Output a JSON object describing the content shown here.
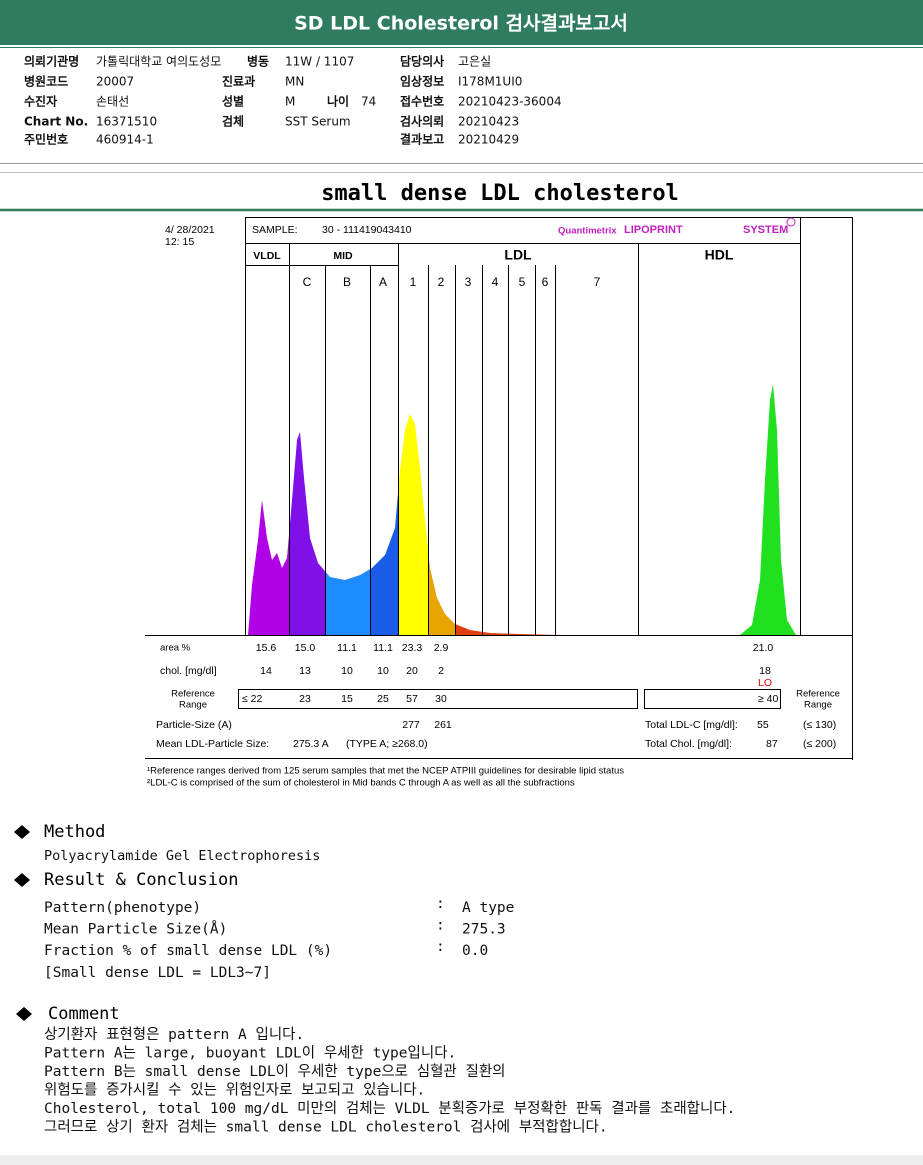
{
  "header": {
    "title": "SD LDL Cholesterol 검사결과보고서"
  },
  "info": [
    {
      "label": "의뢰기관명",
      "value": "가톨릭대학교 여의도성모"
    },
    {
      "label": "병동",
      "value": "11W / 1107"
    },
    {
      "label": "담당의사",
      "value": "고은실"
    },
    {
      "label": "병원코드",
      "value": "20007"
    },
    {
      "label": "진료과",
      "value": "MN"
    },
    {
      "label": "임상정보",
      "value": "I178M1UI0"
    },
    {
      "label": "수진자",
      "value": "손태선"
    },
    {
      "label": "성별",
      "value": "M"
    },
    {
      "label": "나이",
      "value": "74"
    },
    {
      "label": "접수번호",
      "value": "20210423-36004"
    },
    {
      "label": "Chart No.",
      "value": "16371510"
    },
    {
      "label": "검체",
      "value": "SST Serum"
    },
    {
      "label": "검사의뢰",
      "value": "20210423"
    },
    {
      "label": "주민번호",
      "value": "460914-1"
    },
    {
      "label": "결과보고",
      "value": "20210429"
    }
  ],
  "report_title": "small dense LDL cholesterol",
  "chart": {
    "date": "4/ 28/2021",
    "time": "12: 15",
    "sample_label": "SAMPLE:",
    "sample": "30 - 111419043410",
    "brand": "Quantimetrix",
    "product": "LIPOPRINT",
    "system": "SYSTEM",
    "groups": [
      "VLDL",
      "MID",
      "LDL",
      "HDL"
    ],
    "bands": [
      "C",
      "B",
      "A",
      "1",
      "2",
      "3",
      "4",
      "5",
      "6",
      "7"
    ],
    "area": {
      "label": "area %",
      "values": [
        "15.6",
        "15.0",
        "11.1",
        "11.1",
        "23.3",
        "2.9"
      ],
      "hdl": "21.0"
    },
    "chol": {
      "label": "chol. [mg/dl]",
      "values": [
        "14",
        "13",
        "10",
        "10",
        "20",
        "2"
      ],
      "hdl": "18",
      "hdl_flag": "LO"
    },
    "reference": {
      "label": [
        "Reference",
        "Range"
      ],
      "values": [
        "≤ 22",
        "23",
        "15",
        "25",
        "57",
        "30"
      ],
      "hdl": "≥ 40",
      "right_label": [
        "Reference",
        "Range"
      ]
    },
    "particle": {
      "label": "Particle-Size (A)",
      "values": [
        "277",
        "261"
      ]
    },
    "mean": {
      "label": "Mean LDL-Particle Size:",
      "value": "275.3 A",
      "type": "(TYPE A; ≥268.0)"
    },
    "total_ldl": {
      "label": "Total LDL-C [mg/dl]:",
      "value": "55",
      "range": "(≤ 130)"
    },
    "total_chol": {
      "label": "Total Chol. [mg/dl]:",
      "value": "87",
      "range": "(≤ 200)"
    },
    "footnotes": [
      "¹Reference ranges derived from 125 serum samples that met the NCEP ATPIII guidelines for desirable lipid status",
      "²LDL-C is comprised of the sum of cholesterol in Mid bands C through A as well as all the subfractions"
    ]
  },
  "method": {
    "heading": "Method",
    "text": "Polyacrylamide Gel Electrophoresis"
  },
  "result": {
    "heading": "Result & Conclusion",
    "separator": ":",
    "items": [
      {
        "label": "Pattern(phenotype)",
        "value": "A type"
      },
      {
        "label": "Mean Particle Size(Å)",
        "value": "275.3"
      },
      {
        "label": "Fraction % of small dense LDL (%)",
        "value": "0.0"
      }
    ],
    "note": "[Small dense LDL = LDL3~7]"
  },
  "comment": {
    "heading": "Comment",
    "lines": [
      "상기환자 표현형은 pattern A 입니다.",
      "Pattern A는 large, buoyant LDL이 우세한 type입니다.",
      "Pattern B는 small dense LDL이 우세한 type으로 심혈관 질환의",
      "위험도를 증가시킬 수 있는 위험인자로 보고되고 있습니다.",
      "Cholesterol, total 100 mg/dL 미만의 검체는 VLDL 분획증가로 부정확한 판독 결과를 초래합니다.",
      "그러므로 상기 환자 검체는 small dense LDL cholesterol 검사에 부적합합니다."
    ]
  }
}
